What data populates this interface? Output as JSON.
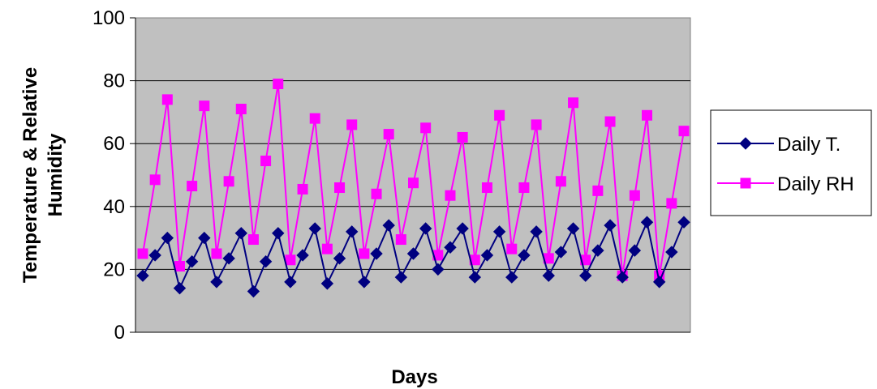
{
  "chart_data": {
    "type": "line",
    "title": "",
    "xlabel": "Days",
    "ylabel_lines": [
      "Temperature & Relative",
      "Humidity"
    ],
    "ylim": [
      0,
      100
    ],
    "yticks": [
      "0",
      "20",
      "40",
      "60",
      "80",
      "100"
    ],
    "grid": "horizontal",
    "legend_position": "right",
    "plot_background": "#c0c0c0",
    "series": [
      {
        "name": "Daily T.",
        "color": "#000080",
        "marker": "diamond",
        "values": [
          18,
          24.5,
          30,
          14,
          22.5,
          30,
          16,
          23.5,
          31.5,
          13,
          22.5,
          31.5,
          16,
          24.5,
          33,
          15.5,
          23.5,
          32,
          16,
          25,
          34,
          17.5,
          25,
          33,
          20,
          27,
          33,
          17.5,
          24.5,
          32,
          17.5,
          24.5,
          32,
          18,
          25.5,
          33,
          18,
          26,
          34,
          17.5,
          26,
          35,
          16,
          25.5,
          35
        ]
      },
      {
        "name": "Daily RH",
        "color": "#ff00ff",
        "marker": "square",
        "values": [
          25,
          48.5,
          74,
          21,
          46.5,
          72,
          25,
          48,
          71,
          29.5,
          54.5,
          79,
          23,
          45.5,
          68,
          26.5,
          46,
          66,
          25,
          44,
          63,
          29.5,
          47.5,
          65,
          24.5,
          43.5,
          62,
          23,
          46,
          69,
          26.5,
          46,
          66,
          23.5,
          48,
          73,
          23,
          45,
          67,
          18,
          43.5,
          69,
          18,
          41,
          64
        ]
      }
    ]
  }
}
